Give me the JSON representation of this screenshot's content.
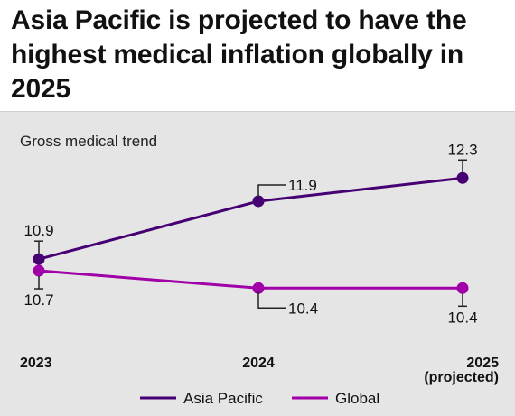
{
  "title": "Asia Pacific is projected to have the highest medical inflation globally in 2025",
  "chart_data": {
    "type": "line",
    "ylabel": "Gross medical trend",
    "categories": [
      "2023",
      "2024",
      "2025"
    ],
    "category_sublabels": [
      "",
      "",
      "(projected)"
    ],
    "ylim": [
      10.0,
      12.6
    ],
    "grid": false,
    "legend_position": "bottom",
    "series": [
      {
        "name": "Asia Pacific",
        "values": [
          10.9,
          11.9,
          12.3
        ],
        "labels": [
          "10.9",
          "11.9",
          "12.3"
        ],
        "color": "#460073"
      },
      {
        "name": "Global",
        "values": [
          10.7,
          10.4,
          10.4
        ],
        "labels": [
          "10.7",
          "10.4",
          "10.4"
        ],
        "color": "#a100a8"
      }
    ]
  }
}
